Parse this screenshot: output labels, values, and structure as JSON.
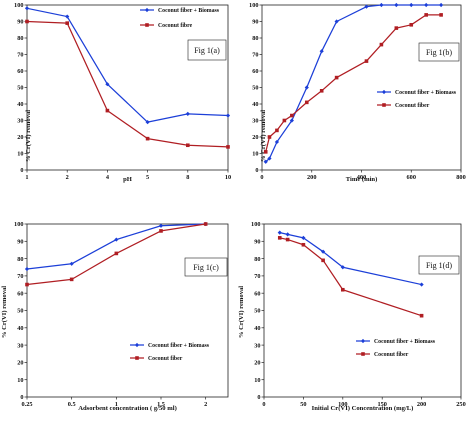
{
  "colors": {
    "biomass": "#1c3fd8",
    "fibre": "#b01e23",
    "axis": "#222222"
  },
  "chart_data": [
    {
      "type": "line",
      "panel": "a",
      "fig_label": "Fig 1(a)",
      "xlabel": "pH",
      "ylabel": "% Cr(VI) removal",
      "x_ticks": [
        "1",
        "2",
        "4",
        "5",
        "8",
        "10"
      ],
      "y_ticks": [
        "0",
        "10",
        "20",
        "30",
        "40",
        "50",
        "60",
        "70",
        "80",
        "90",
        "100"
      ],
      "xlim": [
        0,
        5
      ],
      "ylim": [
        0,
        100
      ],
      "categorical_x": true,
      "grid": false,
      "legend_placement": "top-right",
      "series": [
        {
          "name": "Coconut fiber + Biomass",
          "color": "#1c3fd8",
          "marker": "diamond",
          "x": [
            "1",
            "2",
            "4",
            "5",
            "8",
            "10"
          ],
          "y": [
            98,
            93,
            52,
            29,
            34,
            33
          ]
        },
        {
          "name": "Coconut fibre",
          "color": "#b01e23",
          "marker": "square",
          "x": [
            "1",
            "2",
            "4",
            "5",
            "8",
            "10"
          ],
          "y": [
            90,
            89,
            36,
            19,
            15,
            14
          ]
        }
      ]
    },
    {
      "type": "line",
      "panel": "b",
      "fig_label": "Fig 1(b)",
      "xlabel": "Time (min)",
      "ylabel": "% Cr(VI) removal",
      "x_ticks": [
        "0",
        "200",
        "400",
        "600",
        "800"
      ],
      "y_ticks": [
        "0",
        "10",
        "20",
        "30",
        "40",
        "50",
        "60",
        "70",
        "80",
        "90",
        "100"
      ],
      "xlim": [
        0,
        800
      ],
      "ylim": [
        0,
        100
      ],
      "grid": false,
      "legend_placement": "middle-right",
      "series": [
        {
          "name": "Coconut fiber + Biomass",
          "color": "#1c3fd8",
          "marker": "diamond",
          "x": [
            15,
            30,
            60,
            120,
            180,
            240,
            300,
            420,
            480,
            540,
            600,
            660,
            720
          ],
          "y": [
            5,
            7,
            17,
            30,
            50,
            72,
            90,
            99,
            100,
            100,
            100,
            100,
            100
          ]
        },
        {
          "name": "Coconut fiber",
          "color": "#b01e23",
          "marker": "square",
          "x": [
            15,
            30,
            60,
            90,
            120,
            180,
            240,
            300,
            420,
            480,
            540,
            600,
            660,
            720
          ],
          "y": [
            11,
            20,
            24,
            30,
            33,
            41,
            48,
            56,
            66,
            76,
            86,
            88,
            94,
            94
          ]
        }
      ]
    },
    {
      "type": "line",
      "panel": "c",
      "fig_label": "Fig 1(c)",
      "xlabel": "Adsorbent concentration ( g/50 ml)",
      "ylabel": "% Cr(VI) removal",
      "x_ticks": [
        "0.25",
        "0.5",
        "1",
        "1.5",
        "2"
      ],
      "y_ticks": [
        "0",
        "10",
        "20",
        "30",
        "40",
        "50",
        "60",
        "70",
        "80",
        "90",
        "100"
      ],
      "xlim": [
        0,
        4.5
      ],
      "ylim": [
        0,
        100
      ],
      "categorical_x": true,
      "grid": false,
      "legend_placement": "bottom-right",
      "series": [
        {
          "name": "Coconut fiber + Biomass",
          "color": "#1c3fd8",
          "marker": "diamond",
          "x": [
            "0.25",
            "0.5",
            "1",
            "1.5",
            "2"
          ],
          "y": [
            74,
            77,
            91,
            99,
            100
          ]
        },
        {
          "name": "Coconut fiber",
          "color": "#b01e23",
          "marker": "square",
          "x": [
            "0.25",
            "0.5",
            "1",
            "1.5",
            "2"
          ],
          "y": [
            65,
            68,
            83,
            96,
            100
          ]
        }
      ]
    },
    {
      "type": "line",
      "panel": "d",
      "fig_label": "Fig 1(d)",
      "xlabel": "Initial Cr(VI) Concentration (mg/L)",
      "ylabel": "% Cr(VI) removal",
      "x_ticks": [
        "0",
        "50",
        "100",
        "150",
        "200",
        "250"
      ],
      "y_ticks": [
        "0",
        "10",
        "20",
        "30",
        "40",
        "50",
        "60",
        "70",
        "80",
        "90",
        "100"
      ],
      "xlim": [
        0,
        250
      ],
      "ylim": [
        0,
        100
      ],
      "grid": false,
      "legend_placement": "bottom-right",
      "series": [
        {
          "name": "Coconut fiber + Biomass",
          "color": "#1c3fd8",
          "marker": "diamond",
          "x": [
            20,
            30,
            50,
            75,
            100,
            200
          ],
          "y": [
            95,
            94,
            92,
            84,
            75,
            65
          ]
        },
        {
          "name": "Coconut fiber",
          "color": "#b01e23",
          "marker": "square",
          "x": [
            20,
            30,
            50,
            75,
            100,
            200
          ],
          "y": [
            92,
            91,
            88,
            79,
            62,
            47
          ]
        }
      ]
    }
  ]
}
